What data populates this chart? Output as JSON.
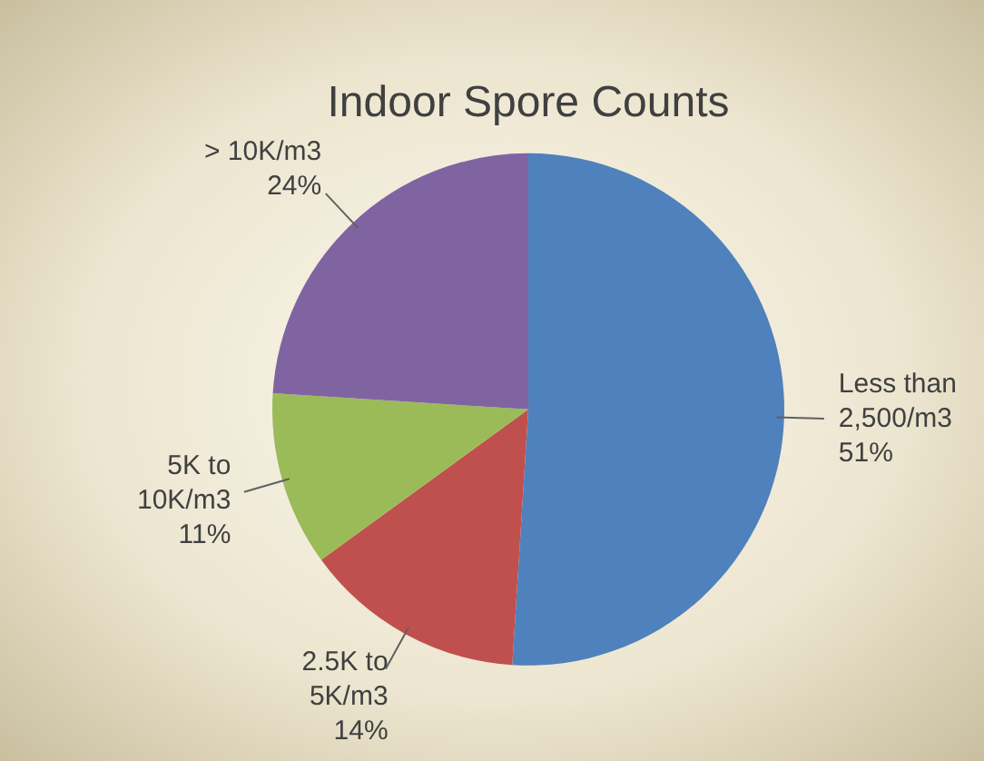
{
  "chart_data": {
    "type": "pie",
    "title": "Indoor Spore Counts",
    "categories": [
      "Less than 2,500/m3",
      "2.5K to 5K/m3",
      "5K to 10K/m3",
      "> 10K/m3"
    ],
    "values": [
      51,
      14,
      11,
      24
    ],
    "colors": [
      "#4f81bd",
      "#c0504d",
      "#9bbb59",
      "#8064a2"
    ],
    "value_labels": [
      "51%",
      "14%",
      "11%",
      "24%"
    ],
    "legend": false
  }
}
